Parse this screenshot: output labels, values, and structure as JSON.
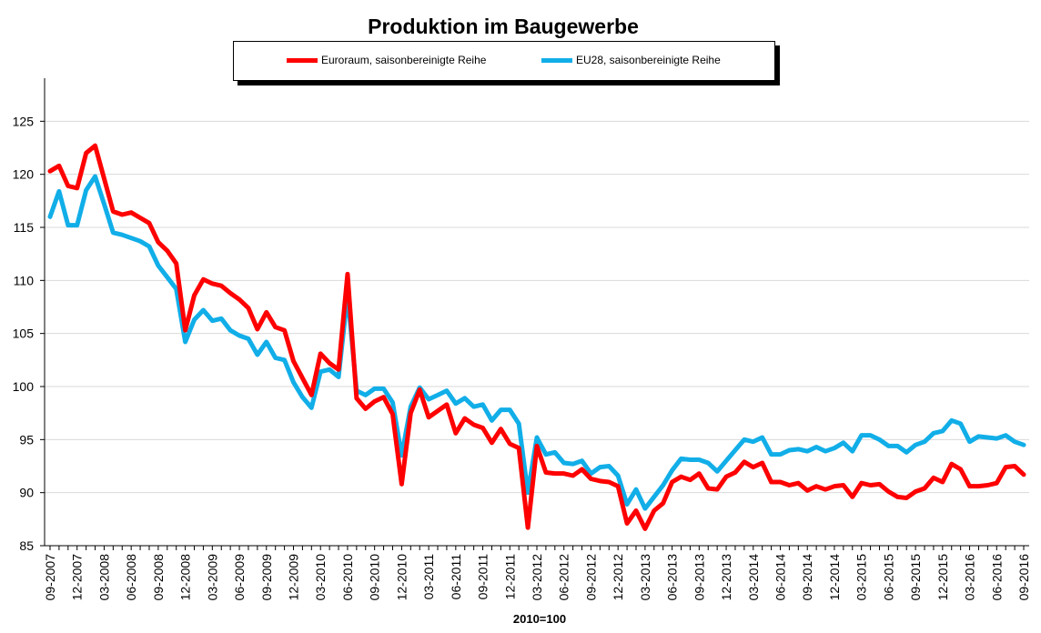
{
  "chart_data": {
    "type": "line",
    "title": "Produktion im Baugewerbe",
    "xlabel": "2010=100",
    "ylabel": "",
    "ylim": [
      85,
      130
    ],
    "yticks": [
      85,
      90,
      95,
      100,
      105,
      110,
      115,
      120,
      125
    ],
    "grid": true,
    "legend_position": "top-center",
    "x_tick_labels": [
      "09-2007",
      "12-2007",
      "03-2008",
      "06-2008",
      "09-2008",
      "12-2008",
      "03-2009",
      "06-2009",
      "09-2009",
      "12-2009",
      "03-2010",
      "06-2010",
      "09-2010",
      "12-2010",
      "03-2011",
      "06-2011",
      "09-2011",
      "12-2011",
      "03-2012",
      "06-2012",
      "09-2012",
      "12-2012",
      "03-2013",
      "06-2013",
      "09-2013",
      "12-2013",
      "03-2014",
      "06-2014",
      "09-2014",
      "12-2014",
      "03-2015",
      "06-2015",
      "09-2015",
      "12-2015",
      "03-2016",
      "06-2016",
      "09-2016"
    ],
    "x": [
      "09-2007",
      "10-2007",
      "11-2007",
      "12-2007",
      "01-2008",
      "02-2008",
      "03-2008",
      "04-2008",
      "05-2008",
      "06-2008",
      "07-2008",
      "08-2008",
      "09-2008",
      "10-2008",
      "11-2008",
      "12-2008",
      "01-2009",
      "02-2009",
      "03-2009",
      "04-2009",
      "05-2009",
      "06-2009",
      "07-2009",
      "08-2009",
      "09-2009",
      "10-2009",
      "11-2009",
      "12-2009",
      "01-2010",
      "02-2010",
      "03-2010",
      "04-2010",
      "05-2010",
      "06-2010",
      "07-2010",
      "08-2010",
      "09-2010",
      "10-2010",
      "11-2010",
      "12-2010",
      "01-2011",
      "02-2011",
      "03-2011",
      "04-2011",
      "05-2011",
      "06-2011",
      "07-2011",
      "08-2011",
      "09-2011",
      "10-2011",
      "11-2011",
      "12-2011",
      "01-2012",
      "02-2012",
      "03-2012",
      "04-2012",
      "05-2012",
      "06-2012",
      "07-2012",
      "08-2012",
      "09-2012",
      "10-2012",
      "11-2012",
      "12-2012",
      "01-2013",
      "02-2013",
      "03-2013",
      "04-2013",
      "05-2013",
      "06-2013",
      "07-2013",
      "08-2013",
      "09-2013",
      "10-2013",
      "11-2013",
      "12-2013",
      "01-2014",
      "02-2014",
      "03-2014",
      "04-2014",
      "05-2014",
      "06-2014",
      "07-2014",
      "08-2014",
      "09-2014",
      "10-2014",
      "11-2014",
      "12-2014",
      "01-2015",
      "02-2015",
      "03-2015",
      "04-2015",
      "05-2015",
      "06-2015",
      "07-2015",
      "08-2015",
      "09-2015",
      "10-2015",
      "11-2015",
      "12-2015",
      "01-2016",
      "02-2016",
      "03-2016",
      "04-2016",
      "05-2016",
      "06-2016",
      "07-2016",
      "08-2016",
      "09-2016"
    ],
    "series": [
      {
        "name": "Euroraum, saisonbereinigte Reihe",
        "color": "#ff0000",
        "values": [
          120.3,
          120.8,
          118.9,
          118.7,
          122.0,
          122.7,
          119.6,
          116.5,
          116.2,
          116.4,
          115.9,
          115.4,
          113.6,
          112.8,
          111.6,
          105.3,
          108.6,
          110.1,
          109.7,
          109.5,
          108.8,
          108.2,
          107.4,
          105.4,
          107.0,
          105.6,
          105.3,
          102.4,
          100.8,
          99.2,
          103.1,
          102.2,
          101.6,
          110.6,
          98.9,
          97.9,
          98.6,
          99.0,
          97.4,
          90.8,
          97.5,
          99.7,
          97.1,
          97.7,
          98.3,
          95.6,
          97.0,
          96.4,
          96.1,
          94.7,
          96.0,
          94.6,
          94.2,
          86.7,
          94.4,
          91.9,
          91.8,
          91.8,
          91.6,
          92.2,
          91.3,
          91.1,
          91.0,
          90.6,
          87.1,
          88.3,
          86.6,
          88.3,
          89.0,
          91.0,
          91.5,
          91.2,
          91.8,
          90.4,
          90.3,
          91.5,
          91.9,
          92.9,
          92.4,
          92.8,
          91.0,
          91.0,
          90.7,
          90.9,
          90.2,
          90.6,
          90.3,
          90.6,
          90.7,
          89.6,
          90.9,
          90.7,
          90.8,
          90.1,
          89.6,
          89.5,
          90.1,
          90.4,
          91.4,
          91.0,
          92.7,
          92.2,
          90.6,
          90.6,
          90.7,
          90.9,
          92.4,
          92.5,
          91.7
        ]
      },
      {
        "name": "EU28, saisonbereinigte Reihe",
        "color": "#11aee8",
        "values": [
          116.0,
          118.4,
          115.2,
          115.2,
          118.5,
          119.8,
          117.2,
          114.5,
          114.3,
          114.0,
          113.7,
          113.2,
          111.4,
          110.3,
          109.2,
          104.2,
          106.3,
          107.2,
          106.2,
          106.4,
          105.3,
          104.8,
          104.5,
          103.0,
          104.2,
          102.7,
          102.5,
          100.4,
          99.0,
          98.0,
          101.4,
          101.6,
          100.9,
          108.7,
          99.6,
          99.2,
          99.8,
          99.8,
          98.5,
          93.5,
          98.1,
          99.9,
          98.8,
          99.2,
          99.6,
          98.4,
          98.9,
          98.1,
          98.3,
          96.8,
          97.8,
          97.8,
          96.5,
          90.0,
          95.2,
          93.6,
          93.8,
          92.8,
          92.7,
          93.0,
          91.8,
          92.4,
          92.5,
          91.6,
          88.9,
          90.3,
          88.5,
          89.6,
          90.7,
          92.1,
          93.2,
          93.1,
          93.1,
          92.8,
          92.0,
          93.0,
          94.0,
          95.0,
          94.8,
          95.2,
          93.6,
          93.6,
          94.0,
          94.1,
          93.9,
          94.3,
          93.9,
          94.2,
          94.7,
          93.9,
          95.4,
          95.4,
          95.0,
          94.4,
          94.4,
          93.8,
          94.5,
          94.8,
          95.6,
          95.8,
          96.8,
          96.5,
          94.8,
          95.3,
          95.2,
          95.1,
          95.4,
          94.8,
          94.5
        ]
      }
    ]
  }
}
